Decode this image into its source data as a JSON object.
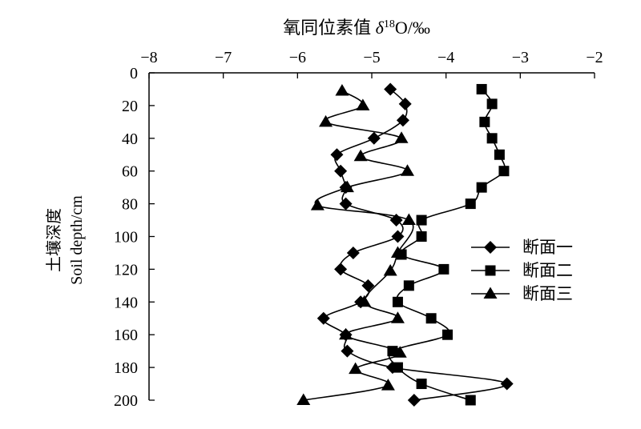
{
  "chart_data": {
    "type": "line",
    "title": "",
    "xlabel": "氧同位素值 δ¹⁸O/‰",
    "xlabel_parts": [
      "氧同位素值 ",
      "δ",
      "18",
      "O/‰"
    ],
    "ylabel_line1": "土壤深度",
    "ylabel_line2": "Soil depth/cm",
    "xlim": [
      -8,
      -2
    ],
    "ylim": [
      0,
      200
    ],
    "y_inverted": true,
    "x_axis_position": "top",
    "grid": false,
    "legend_position": "right",
    "x_ticks": [
      -8,
      -7,
      -6,
      -5,
      -4,
      -3,
      -2
    ],
    "x_tick_labels": [
      "−8",
      "−7",
      "−6",
      "−5",
      "−4",
      "−3",
      "−2"
    ],
    "y_ticks": [
      0,
      20,
      40,
      60,
      80,
      100,
      120,
      140,
      160,
      180,
      200
    ],
    "y_tick_labels": [
      "0",
      "20",
      "40",
      "60",
      "80",
      "100",
      "120",
      "140",
      "160",
      "180",
      "200"
    ],
    "series": [
      {
        "name": "断面一",
        "marker": "diamond",
        "points": [
          [
            -4.75,
            10
          ],
          [
            -4.55,
            19
          ],
          [
            -4.58,
            29
          ],
          [
            -4.97,
            40
          ],
          [
            -5.47,
            50
          ],
          [
            -5.42,
            60
          ],
          [
            -5.35,
            70
          ],
          [
            -5.35,
            80
          ],
          [
            -4.67,
            90
          ],
          [
            -4.65,
            100
          ],
          [
            -5.25,
            110
          ],
          [
            -5.42,
            120
          ],
          [
            -5.05,
            130
          ],
          [
            -5.15,
            140
          ],
          [
            -5.65,
            150
          ],
          [
            -5.35,
            160
          ],
          [
            -5.33,
            170
          ],
          [
            -4.72,
            180
          ],
          [
            -3.18,
            190
          ],
          [
            -4.43,
            200
          ]
        ]
      },
      {
        "name": "断面二",
        "marker": "square",
        "points": [
          [
            -3.52,
            10
          ],
          [
            -3.38,
            19
          ],
          [
            -3.48,
            30
          ],
          [
            -3.38,
            40
          ],
          [
            -3.28,
            50
          ],
          [
            -3.22,
            60
          ],
          [
            -3.52,
            70
          ],
          [
            -3.67,
            80
          ],
          [
            -4.33,
            90
          ],
          [
            -4.33,
            100
          ],
          [
            -4.6,
            111
          ],
          [
            -4.03,
            120
          ],
          [
            -4.5,
            130
          ],
          [
            -4.65,
            140
          ],
          [
            -4.2,
            150
          ],
          [
            -3.98,
            160
          ],
          [
            -4.72,
            170
          ],
          [
            -4.65,
            180
          ],
          [
            -4.33,
            190
          ],
          [
            -3.67,
            200
          ]
        ]
      },
      {
        "name": "断面三",
        "marker": "triangle",
        "points": [
          [
            -5.4,
            11
          ],
          [
            -5.12,
            20
          ],
          [
            -5.62,
            30
          ],
          [
            -4.6,
            40
          ],
          [
            -5.15,
            51
          ],
          [
            -4.52,
            60
          ],
          [
            -5.33,
            70
          ],
          [
            -5.73,
            81
          ],
          [
            -4.5,
            90
          ],
          [
            -4.65,
            110
          ],
          [
            -4.75,
            121
          ],
          [
            -5.1,
            140
          ],
          [
            -4.65,
            150
          ],
          [
            -5.35,
            160
          ],
          [
            -4.62,
            171
          ],
          [
            -5.22,
            181
          ],
          [
            -4.78,
            191
          ],
          [
            -5.92,
            200
          ]
        ]
      }
    ]
  }
}
